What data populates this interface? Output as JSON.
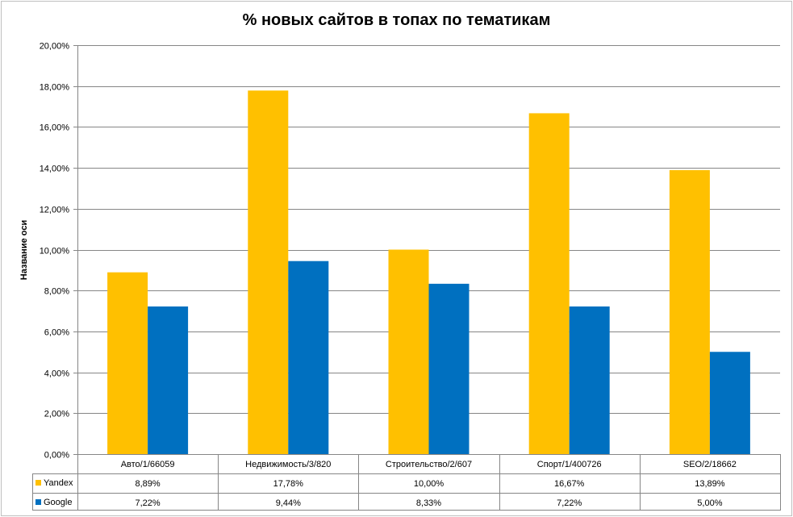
{
  "chart_data": {
    "type": "bar",
    "title": "% новых сайтов в топах по тематикам",
    "ylabel": "Название оси",
    "xlabel": "",
    "categories": [
      "Авто/1/66059",
      "Недвижимость/3/820",
      "Строительство/2/607",
      "Спорт/1/400726",
      "SEO/2/18662"
    ],
    "series": [
      {
        "name": "Yandex",
        "color": "#FFC000",
        "values": [
          8.89,
          17.78,
          10.0,
          16.67,
          13.89
        ],
        "labels": [
          "8,89%",
          "17,78%",
          "10,00%",
          "16,67%",
          "13,89%"
        ]
      },
      {
        "name": "Google",
        "color": "#0070C0",
        "values": [
          7.22,
          9.44,
          8.33,
          7.22,
          5.0
        ],
        "labels": [
          "7,22%",
          "9,44%",
          "8,33%",
          "7,22%",
          "5,00%"
        ]
      }
    ],
    "ylim": [
      0,
      20
    ],
    "yticks": [
      0,
      2,
      4,
      6,
      8,
      10,
      12,
      14,
      16,
      18,
      20
    ],
    "ytick_labels": [
      "0,00%",
      "2,00%",
      "4,00%",
      "6,00%",
      "8,00%",
      "10,00%",
      "12,00%",
      "14,00%",
      "16,00%",
      "18,00%",
      "20,00%"
    ],
    "grid": true,
    "legend": "data table below chart"
  }
}
